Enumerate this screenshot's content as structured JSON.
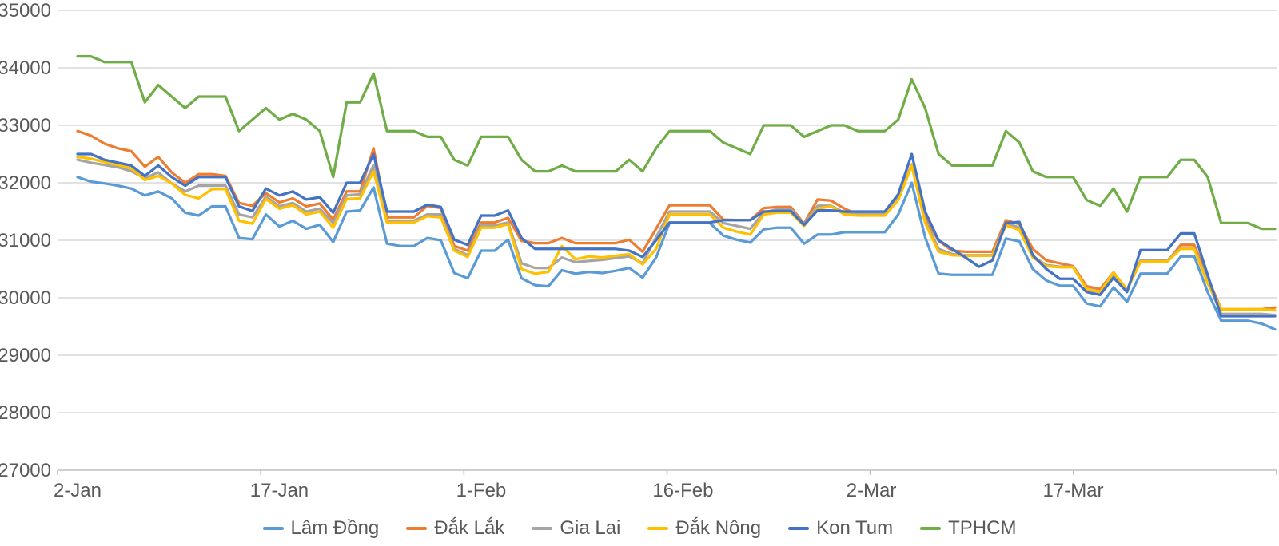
{
  "chart_data": {
    "type": "line",
    "title": "",
    "xlabel": "",
    "ylabel": "",
    "grid": "horizontal",
    "legend_position": "bottom",
    "ylim": [
      27000,
      35000
    ],
    "y_ticks": [
      35000,
      34000,
      33000,
      32000,
      31000,
      30000,
      29000,
      28000,
      27000
    ],
    "x_ticks": [
      {
        "label": "2-Jan",
        "day": 0
      },
      {
        "label": "17-Jan",
        "day": 15
      },
      {
        "label": "1-Feb",
        "day": 30
      },
      {
        "label": "16-Feb",
        "day": 45
      },
      {
        "label": "2-Mar",
        "day": 59
      },
      {
        "label": "17-Mar",
        "day": 74
      }
    ],
    "n_points": 90,
    "colors": {
      "grid": "#D9D9D9",
      "axis": "#BFBFBF",
      "text": "#595959"
    },
    "series": [
      {
        "name": "Lâm Đồng",
        "color": "#5B9BD5",
        "values": [
          32100,
          32020,
          31990,
          31950,
          31900,
          31780,
          31850,
          31730,
          31480,
          31430,
          31590,
          31590,
          31040,
          31020,
          31450,
          31240,
          31340,
          31200,
          31270,
          30970,
          31500,
          31520,
          31920,
          30940,
          30900,
          30900,
          31040,
          31000,
          30430,
          30340,
          30820,
          30820,
          31010,
          30340,
          30220,
          30200,
          30480,
          30420,
          30450,
          30430,
          30470,
          30520,
          30350,
          30700,
          31300,
          31300,
          31300,
          31300,
          31080,
          31010,
          30960,
          31190,
          31220,
          31220,
          30940,
          31100,
          31100,
          31140,
          31140,
          31140,
          31140,
          31450,
          32000,
          31050,
          30420,
          30400,
          30400,
          30400,
          30400,
          31030,
          30980,
          30500,
          30300,
          30210,
          30210,
          29900,
          29850,
          30180,
          29930,
          30420,
          30420,
          30420,
          30720,
          30720,
          30100,
          29600,
          29600,
          29600,
          29550,
          29450
        ]
      },
      {
        "name": "Đắk Lắk",
        "color": "#ED7D31",
        "values": [
          32900,
          32820,
          32680,
          32600,
          32550,
          32280,
          32450,
          32180,
          32000,
          32150,
          32150,
          32120,
          31650,
          31600,
          31820,
          31660,
          31730,
          31590,
          31640,
          31360,
          31850,
          31850,
          32600,
          31400,
          31400,
          31400,
          31600,
          31560,
          30900,
          30820,
          31310,
          31310,
          31390,
          30990,
          30950,
          30950,
          31040,
          30950,
          30950,
          30950,
          30950,
          31010,
          30800,
          31200,
          31610,
          31610,
          31610,
          31610,
          31360,
          31350,
          31350,
          31560,
          31580,
          31580,
          31290,
          31710,
          31690,
          31550,
          31450,
          31450,
          31450,
          31750,
          32320,
          31400,
          30990,
          30820,
          30800,
          30800,
          30800,
          31350,
          31280,
          30850,
          30650,
          30600,
          30550,
          30200,
          30150,
          30440,
          30140,
          30630,
          30630,
          30630,
          30920,
          30920,
          30350,
          29800,
          29800,
          29800,
          29800,
          29830
        ]
      },
      {
        "name": "Gia Lai",
        "color": "#A5A5A5",
        "values": [
          32400,
          32350,
          32310,
          32270,
          32200,
          32080,
          32180,
          31990,
          31850,
          31950,
          31950,
          31950,
          31450,
          31400,
          31760,
          31590,
          31650,
          31500,
          31550,
          31300,
          31780,
          31800,
          32310,
          31340,
          31340,
          31340,
          31450,
          31450,
          30850,
          30740,
          31260,
          31260,
          31310,
          30600,
          30520,
          30520,
          30700,
          30620,
          30640,
          30660,
          30690,
          30720,
          30600,
          31050,
          31500,
          31500,
          31500,
          31500,
          31300,
          31250,
          31200,
          31480,
          31540,
          31540,
          31280,
          31600,
          31600,
          31480,
          31460,
          31460,
          31460,
          31750,
          32310,
          31350,
          30850,
          30760,
          30740,
          30740,
          30740,
          31300,
          31220,
          30720,
          30570,
          30540,
          30540,
          30150,
          30100,
          30400,
          30140,
          30650,
          30650,
          30650,
          30870,
          30870,
          30280,
          29720,
          29720,
          29720,
          29720,
          29700
        ]
      },
      {
        "name": "Đắk Nông",
        "color": "#FFC000",
        "values": [
          32450,
          32420,
          32360,
          32310,
          32250,
          32050,
          32120,
          31990,
          31790,
          31730,
          31890,
          31890,
          31340,
          31290,
          31720,
          31550,
          31610,
          31450,
          31500,
          31220,
          31720,
          31730,
          32200,
          31310,
          31310,
          31310,
          31420,
          31400,
          30820,
          30710,
          31220,
          31220,
          31280,
          30500,
          30420,
          30450,
          30900,
          30670,
          30720,
          30700,
          30730,
          30760,
          30580,
          30850,
          31450,
          31450,
          31450,
          31450,
          31220,
          31150,
          31100,
          31450,
          31480,
          31480,
          31250,
          31550,
          31590,
          31450,
          31430,
          31430,
          31430,
          31700,
          32300,
          31300,
          30800,
          30740,
          30730,
          30730,
          30730,
          31260,
          31180,
          30700,
          30550,
          30530,
          30530,
          30150,
          30100,
          30440,
          30140,
          30630,
          30630,
          30630,
          30850,
          30850,
          30250,
          29800,
          29800,
          29800,
          29800,
          29780
        ]
      },
      {
        "name": "Kon Tum",
        "color": "#4472C4",
        "values": [
          32500,
          32500,
          32400,
          32350,
          32300,
          32120,
          32300,
          32100,
          31950,
          32100,
          32100,
          32100,
          31590,
          31510,
          31900,
          31780,
          31850,
          31710,
          31750,
          31480,
          32000,
          32000,
          32500,
          31500,
          31500,
          31500,
          31620,
          31580,
          31010,
          30920,
          31430,
          31430,
          31520,
          31040,
          30850,
          30850,
          30850,
          30850,
          30850,
          30850,
          30850,
          30820,
          30710,
          31000,
          31310,
          31310,
          31310,
          31310,
          31350,
          31350,
          31350,
          31500,
          31510,
          31510,
          31270,
          31520,
          31520,
          31500,
          31500,
          31500,
          31500,
          31800,
          32500,
          31500,
          31000,
          30850,
          30700,
          30540,
          30650,
          31300,
          31320,
          30740,
          30500,
          30330,
          30330,
          30100,
          30050,
          30350,
          30100,
          30830,
          30830,
          30830,
          31120,
          31120,
          30400,
          29680,
          29680,
          29680,
          29680,
          29680
        ]
      },
      {
        "name": "TPHCM",
        "color": "#70AD47",
        "values": [
          34200,
          34200,
          34100,
          34100,
          34100,
          33400,
          33700,
          33500,
          33300,
          33500,
          33500,
          33500,
          32900,
          33100,
          33300,
          33100,
          33200,
          33100,
          32900,
          32100,
          33400,
          33400,
          33900,
          32900,
          32900,
          32900,
          32800,
          32800,
          32400,
          32300,
          32800,
          32800,
          32800,
          32400,
          32200,
          32200,
          32300,
          32200,
          32200,
          32200,
          32200,
          32400,
          32200,
          32600,
          32900,
          32900,
          32900,
          32900,
          32700,
          32600,
          32500,
          33000,
          33000,
          33000,
          32800,
          32900,
          33000,
          33000,
          32900,
          32900,
          32900,
          33100,
          33800,
          33300,
          32500,
          32300,
          32300,
          32300,
          32300,
          32900,
          32700,
          32200,
          32100,
          32100,
          32100,
          31700,
          31600,
          31900,
          31500,
          32100,
          32100,
          32100,
          32400,
          32400,
          32100,
          31300,
          31300,
          31300,
          31200,
          31200
        ]
      }
    ]
  }
}
